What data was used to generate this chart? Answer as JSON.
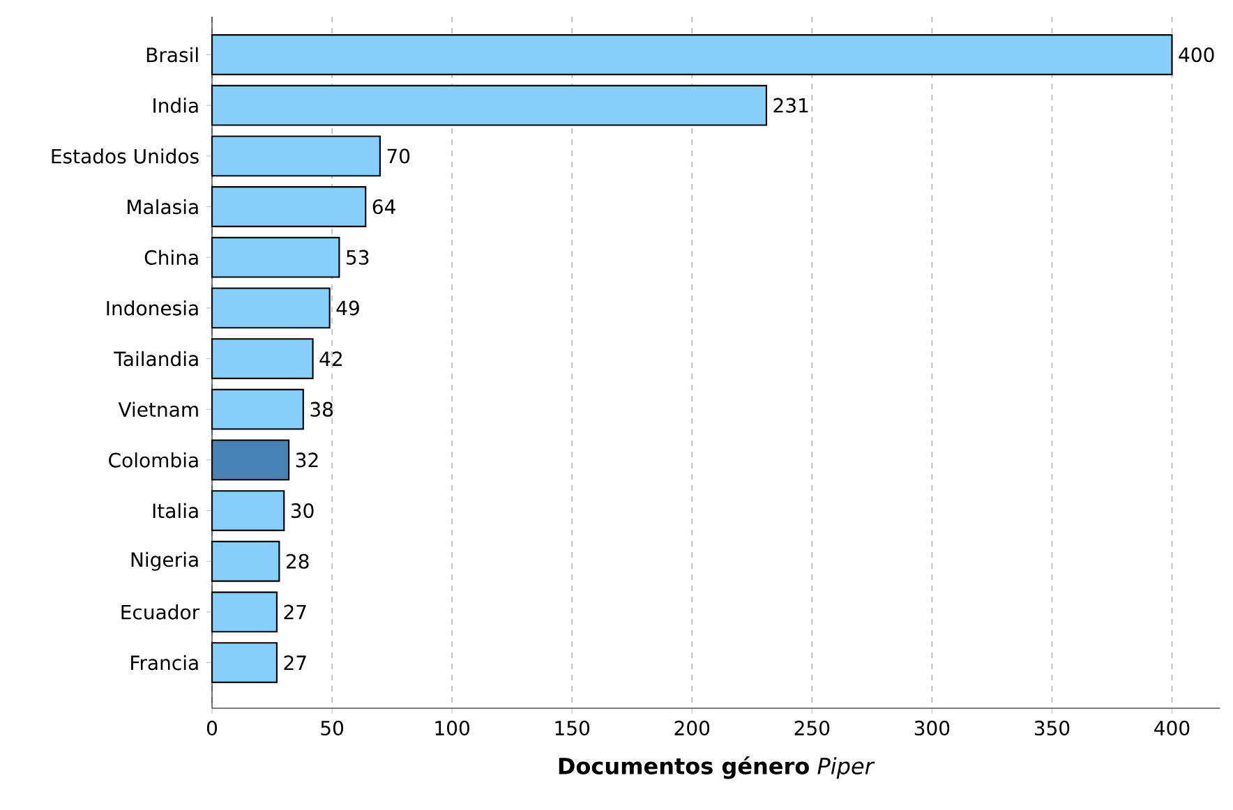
{
  "chart_data": {
    "type": "bar",
    "orientation": "horizontal",
    "xlabel": "**Documentos género** *Piper*",
    "categories": [
      "Brasil",
      "India",
      "Estados Unidos",
      "Malasia",
      "China",
      "Indonesia",
      "Tailandia",
      "Vietnam",
      "Colombia",
      "Italia",
      "Nigeria",
      "Ecuador",
      "Francia"
    ],
    "values": [
      400,
      231,
      70,
      64,
      53,
      49,
      42,
      38,
      32,
      30,
      28,
      27,
      27
    ],
    "colors": [
      "#87cefa",
      "#87cefa",
      "#87cefa",
      "#87cefa",
      "#87cefa",
      "#87cefa",
      "#87cefa",
      "#87cefa",
      "#4682b4",
      "#87cefa",
      "#87cefa",
      "#87cefa",
      "#87cefa"
    ],
    "xlim": [
      0,
      420
    ],
    "xticks": [
      0,
      50,
      100,
      150,
      200,
      250,
      300,
      350,
      400
    ],
    "grid": "x",
    "data_labels": true
  }
}
